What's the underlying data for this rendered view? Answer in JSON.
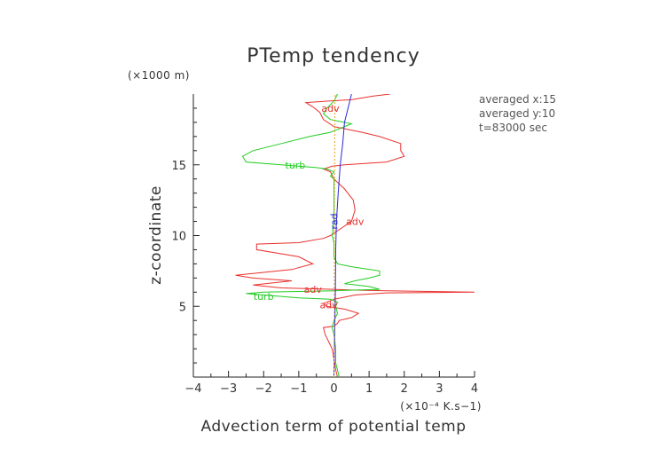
{
  "chart_data": {
    "type": "line",
    "title": "PTemp tendency",
    "xlabel": "Advection term of potential temp",
    "ylabel": "z-coordinate",
    "x_unit": "(×10⁻⁴ K.s−1)",
    "y_unit": "(×1000 m)",
    "xlim": [
      -4,
      4
    ],
    "ylim": [
      0,
      20
    ],
    "xticks": [
      "−4",
      "−3",
      "−2",
      "−1",
      "0",
      "1",
      "2",
      "3",
      "4"
    ],
    "yticks": [
      "5",
      "10",
      "15"
    ],
    "annotations": [
      "averaged  x:15",
      "averaged  y:10",
      "t=83000 sec"
    ],
    "series": [
      {
        "name": "adv",
        "color": "#e8312e",
        "points": [
          [
            0.1,
            0.0
          ],
          [
            0.05,
            0.5
          ],
          [
            0.02,
            1.0
          ],
          [
            -0.05,
            2.0
          ],
          [
            -0.25,
            3.0
          ],
          [
            -0.3,
            3.5
          ],
          [
            0.0,
            3.6
          ],
          [
            0.1,
            3.8
          ],
          [
            0.15,
            4.0
          ],
          [
            0.5,
            4.2
          ],
          [
            0.7,
            4.5
          ],
          [
            0.3,
            4.8
          ],
          [
            -0.2,
            5.0
          ],
          [
            -0.3,
            5.2
          ],
          [
            0.0,
            5.5
          ],
          [
            0.2,
            5.6
          ],
          [
            0.6,
            5.8
          ],
          [
            1.5,
            5.95
          ],
          [
            4.0,
            6.0
          ],
          [
            1.5,
            6.1
          ],
          [
            0.5,
            6.15
          ],
          [
            0.0,
            6.2
          ],
          [
            -1.5,
            6.3
          ],
          [
            -2.3,
            6.5
          ],
          [
            -1.2,
            6.8
          ],
          [
            -2.3,
            7.0
          ],
          [
            -2.8,
            7.2
          ],
          [
            -1.2,
            7.6
          ],
          [
            -0.6,
            8.0
          ],
          [
            -1.0,
            8.5
          ],
          [
            -2.2,
            9.0
          ],
          [
            -2.2,
            9.4
          ],
          [
            -1.0,
            9.5
          ],
          [
            -0.3,
            9.8
          ],
          [
            -0.1,
            10.0
          ],
          [
            0.2,
            10.5
          ],
          [
            0.5,
            11.0
          ],
          [
            0.6,
            11.8
          ],
          [
            0.55,
            12.5
          ],
          [
            0.3,
            13.3
          ],
          [
            0.0,
            14.0
          ],
          [
            -0.1,
            14.5
          ],
          [
            -0.3,
            14.7
          ],
          [
            -0.05,
            14.9
          ],
          [
            0.3,
            15.0
          ],
          [
            1.5,
            15.2
          ],
          [
            2.0,
            15.6
          ],
          [
            1.9,
            16.0
          ],
          [
            1.9,
            16.5
          ],
          [
            1.3,
            17.0
          ],
          [
            0.8,
            17.3
          ],
          [
            0.0,
            17.7
          ],
          [
            -0.3,
            18.2
          ],
          [
            -0.4,
            18.7
          ],
          [
            -0.6,
            19.1
          ],
          [
            -0.8,
            19.4
          ],
          [
            -0.2,
            19.5
          ],
          [
            0.5,
            19.6
          ],
          [
            1.1,
            19.85
          ],
          [
            1.6,
            20.0
          ]
        ]
      },
      {
        "name": "turb",
        "color": "#22cc22",
        "points": [
          [
            0.15,
            0.0
          ],
          [
            0.1,
            0.5
          ],
          [
            0.05,
            1.0
          ],
          [
            0.05,
            2.0
          ],
          [
            0.0,
            3.0
          ],
          [
            -0.05,
            3.5
          ],
          [
            0.0,
            4.0
          ],
          [
            0.1,
            4.5
          ],
          [
            0.05,
            5.0
          ],
          [
            0.1,
            5.3
          ],
          [
            -0.1,
            5.5
          ],
          [
            -1.0,
            5.6
          ],
          [
            -2.0,
            5.8
          ],
          [
            -2.5,
            5.9
          ],
          [
            -2.0,
            6.0
          ],
          [
            0.0,
            6.1
          ],
          [
            1.3,
            6.2
          ],
          [
            1.0,
            6.4
          ],
          [
            0.3,
            6.6
          ],
          [
            0.6,
            6.8
          ],
          [
            1.0,
            7.0
          ],
          [
            1.3,
            7.2
          ],
          [
            1.3,
            7.5
          ],
          [
            0.5,
            7.8
          ],
          [
            0.1,
            8.0
          ],
          [
            0.0,
            8.5
          ],
          [
            0.0,
            9.0
          ],
          [
            0.0,
            9.5
          ],
          [
            -0.05,
            10.0
          ],
          [
            0.0,
            11.0
          ],
          [
            0.0,
            12.0
          ],
          [
            0.0,
            13.0
          ],
          [
            0.0,
            14.0
          ],
          [
            -0.1,
            14.2
          ],
          [
            0.0,
            14.5
          ],
          [
            -0.2,
            14.7
          ],
          [
            -0.5,
            14.8
          ],
          [
            -1.5,
            15.0
          ],
          [
            -2.5,
            15.2
          ],
          [
            -2.6,
            15.6
          ],
          [
            -2.3,
            16.0
          ],
          [
            -1.5,
            16.5
          ],
          [
            -0.7,
            17.0
          ],
          [
            -0.1,
            17.3
          ],
          [
            0.2,
            17.6
          ],
          [
            0.5,
            17.9
          ],
          [
            -0.1,
            18.2
          ],
          [
            -0.3,
            18.6
          ],
          [
            -0.2,
            19.0
          ],
          [
            0.0,
            19.5
          ],
          [
            0.1,
            20.0
          ]
        ]
      },
      {
        "name": "rad",
        "color": "#2a2ad6",
        "points": [
          [
            0.0,
            0.0
          ],
          [
            0.02,
            3.0
          ],
          [
            0.04,
            6.0
          ],
          [
            0.05,
            9.0
          ],
          [
            0.07,
            11.0
          ],
          [
            0.12,
            13.0
          ],
          [
            0.18,
            15.0
          ],
          [
            0.25,
            16.5
          ],
          [
            0.3,
            18.0
          ],
          [
            0.4,
            19.0
          ],
          [
            0.5,
            20.0
          ]
        ]
      },
      {
        "name": "",
        "color": "#e8a21e",
        "dashed": true,
        "points": [
          [
            0.0,
            0.0
          ],
          [
            0.01,
            5.0
          ],
          [
            0.01,
            10.0
          ],
          [
            0.02,
            15.0
          ],
          [
            0.03,
            20.0
          ]
        ]
      }
    ],
    "curve_labels": [
      {
        "text": "adv",
        "x": -0.1,
        "y": 19.0
      },
      {
        "text": "adv",
        "x": 0.6,
        "y": 11.0
      },
      {
        "text": "adv",
        "x": -0.6,
        "y": 6.2
      },
      {
        "text": "adv",
        "x": -0.15,
        "y": 5.1
      },
      {
        "text": "turb",
        "x": -1.1,
        "y": 15.0
      },
      {
        "text": "turb",
        "x": -2.0,
        "y": 5.7
      },
      {
        "text": "rad",
        "x": 0.0,
        "y": 11.0
      }
    ]
  }
}
